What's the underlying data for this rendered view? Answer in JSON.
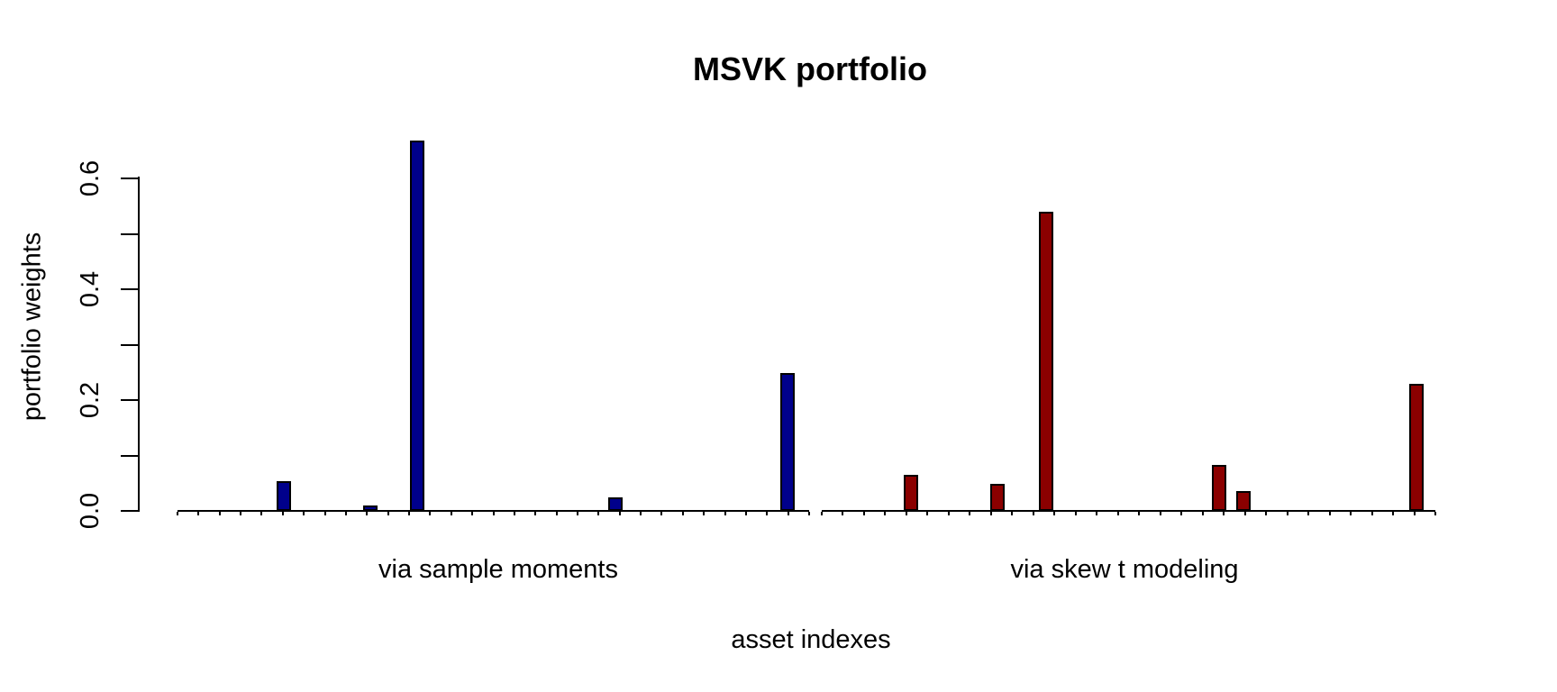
{
  "chart_data": {
    "type": "bar",
    "title": "MSVK portfolio",
    "xlabel": "asset indexes",
    "ylabel": "portfolio weights",
    "background_color": "#FFFFFF",
    "axis_color": "#000000",
    "bar_border_color": "#000000",
    "grid": false,
    "legend": false,
    "ylim": [
      0,
      0.6
    ],
    "y_axis": {
      "ticks": [
        {
          "value": 0.0,
          "label": "0.0"
        },
        {
          "value": 0.1,
          "label": ""
        },
        {
          "value": 0.2,
          "label": "0.2"
        },
        {
          "value": 0.3,
          "label": ""
        },
        {
          "value": 0.4,
          "label": "0.4"
        },
        {
          "value": 0.5,
          "label": ""
        },
        {
          "value": 0.6,
          "label": "0.6"
        }
      ]
    },
    "groups": [
      {
        "label": "via sample moments",
        "color": "#00008B",
        "bars": [
          {
            "x_frac": 0.168,
            "weight": 0.053
          },
          {
            "x_frac": 0.305,
            "weight": 0.01
          },
          {
            "x_frac": 0.38,
            "weight": 0.668
          },
          {
            "x_frac": 0.693,
            "weight": 0.024
          },
          {
            "x_frac": 0.966,
            "weight": 0.248
          }
        ]
      },
      {
        "label": "via skew t modeling",
        "color": "#8B0000",
        "bars": [
          {
            "x_frac": 0.146,
            "weight": 0.065
          },
          {
            "x_frac": 0.287,
            "weight": 0.049
          },
          {
            "x_frac": 0.366,
            "weight": 0.54
          },
          {
            "x_frac": 0.648,
            "weight": 0.083
          },
          {
            "x_frac": 0.687,
            "weight": 0.035
          },
          {
            "x_frac": 0.969,
            "weight": 0.23
          }
        ]
      }
    ]
  }
}
